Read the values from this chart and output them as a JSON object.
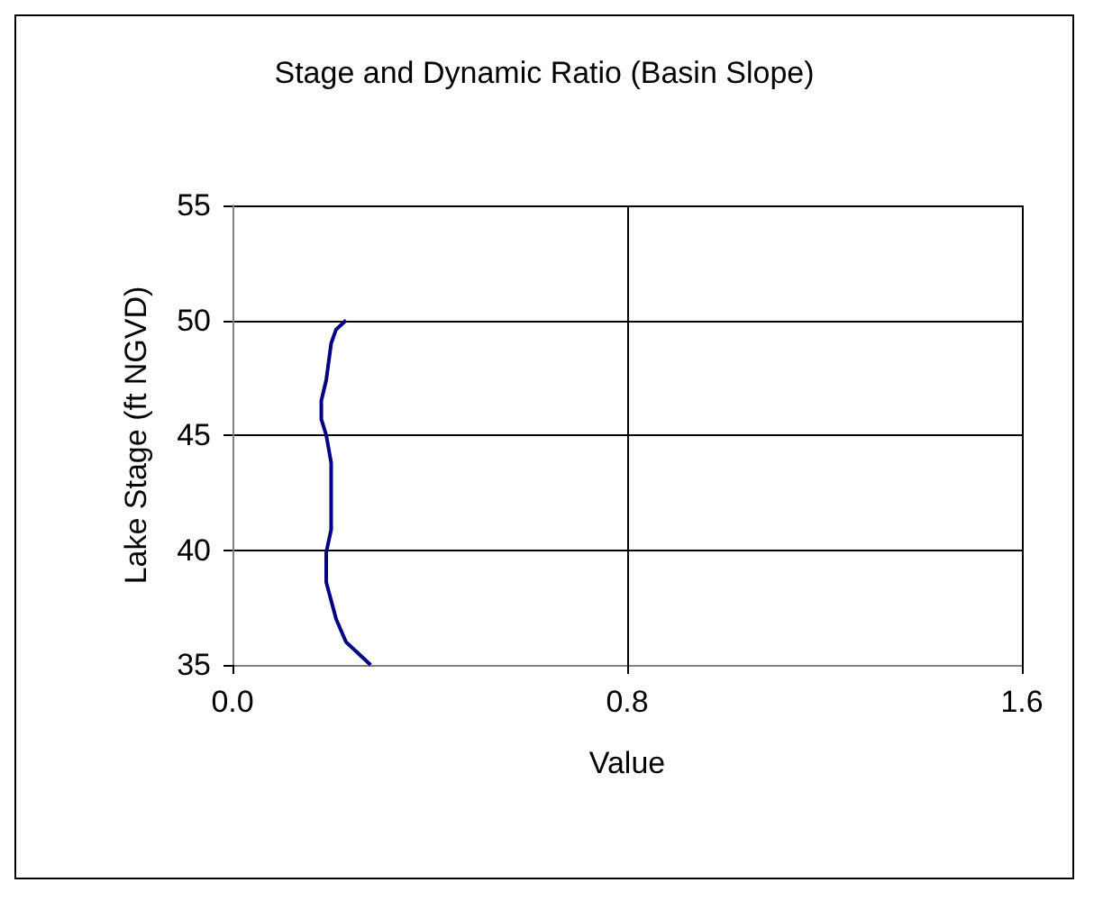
{
  "chart_data": {
    "type": "line",
    "title": "Stage and Dynamic Ratio (Basin Slope)",
    "xlabel": "Value",
    "ylabel": "Lake Stage (ft NGVD)",
    "series": [
      {
        "color": "#000080",
        "x": [
          0.28,
          0.23,
          0.21,
          0.19,
          0.19,
          0.2,
          0.2,
          0.2,
          0.19,
          0.18,
          0.18,
          0.19,
          0.2,
          0.21,
          0.23
        ],
        "values": [
          35,
          36,
          37,
          38.6,
          39.9,
          40.9,
          42.5,
          43.8,
          45,
          45.7,
          46.5,
          47.4,
          49,
          49.6,
          50
        ]
      }
    ],
    "xlim": [
      0,
      1.6
    ],
    "xticks": [
      {
        "value": 0,
        "label": "0.0"
      },
      {
        "value": 0.8,
        "label": "0.8"
      },
      {
        "value": 1.6,
        "label": "1.6"
      }
    ],
    "ylim": [
      35,
      55
    ],
    "yticks": [
      35,
      40,
      45,
      50,
      55
    ],
    "grid": true,
    "marker": "none",
    "line_style": "solid"
  }
}
